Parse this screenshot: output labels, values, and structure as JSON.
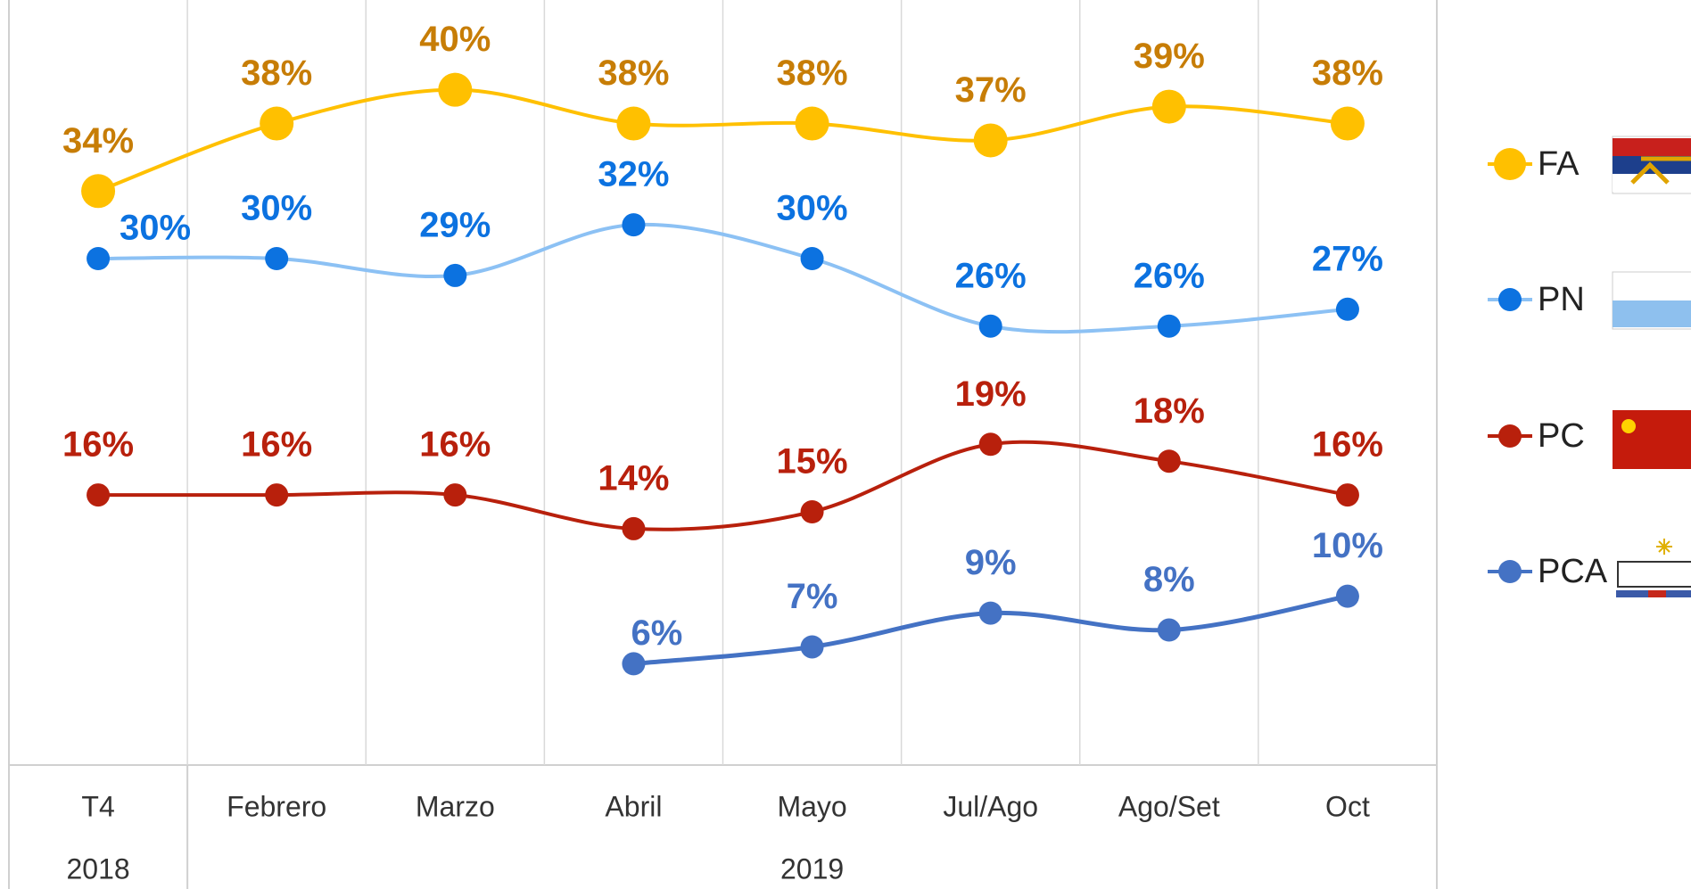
{
  "chart_data": {
    "type": "line",
    "categories": [
      "T4",
      "Febrero",
      "Marzo",
      "Abril",
      "Mayo",
      "Jul/Ago",
      "Ago/Set",
      "Oct"
    ],
    "category_groups": [
      {
        "label": "2018",
        "count": 1
      },
      {
        "label": "2019",
        "count": 7
      }
    ],
    "ylim": [
      0,
      45
    ],
    "smooth": true,
    "legend": "right",
    "series": [
      {
        "name": "FA",
        "color": "#ffc000",
        "marker_color": "#ffc000",
        "label_color": "#c77d06",
        "values": [
          34,
          38,
          40,
          38,
          38,
          37,
          39,
          38
        ],
        "value_labels": [
          "34%",
          "38%",
          "40%",
          "38%",
          "38%",
          "37%",
          "39%",
          "38%"
        ]
      },
      {
        "name": "PN",
        "color": "#8cc1f4",
        "marker_color": "#0c72e0",
        "label_color": "#0c72e0",
        "values": [
          30,
          30,
          29,
          32,
          30,
          26,
          26,
          27
        ],
        "value_labels": [
          "30%",
          "30%",
          "29%",
          "32%",
          "30%",
          "26%",
          "26%",
          "27%"
        ]
      },
      {
        "name": "PC",
        "color": "#b8200c",
        "marker_color": "#b8200c",
        "label_color": "#b8200c",
        "values": [
          16,
          16,
          16,
          14,
          15,
          19,
          18,
          16
        ],
        "value_labels": [
          "16%",
          "16%",
          "16%",
          "14%",
          "15%",
          "19%",
          "18%",
          "16%"
        ]
      },
      {
        "name": "PCA",
        "color": "#4472c4",
        "marker_color": "#4472c4",
        "label_color": "#4472c4",
        "values": [
          null,
          null,
          null,
          6,
          7,
          9,
          8,
          10
        ],
        "value_labels": [
          null,
          null,
          null,
          "6%",
          "7%",
          "9%",
          "8%",
          "10%"
        ]
      }
    ]
  }
}
